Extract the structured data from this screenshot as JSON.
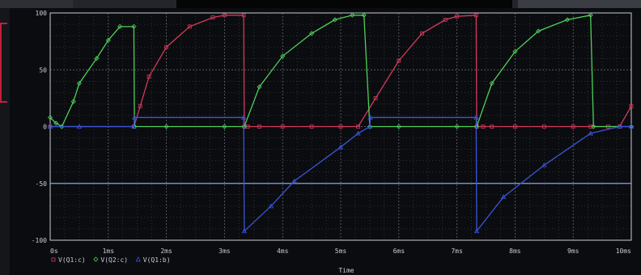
{
  "window": {
    "colors": {
      "background": "#0b0c10",
      "grid": "#8a8f98",
      "axis": "#c8ccd2"
    }
  },
  "chart_data": {
    "type": "line",
    "xlabel": "Time",
    "ylabel": "",
    "xlim": [
      0,
      10
    ],
    "ylim": [
      -100,
      100
    ],
    "x_ticks": [
      "0s",
      "1ms",
      "2ms",
      "3ms",
      "4ms",
      "5ms",
      "6ms",
      "7ms",
      "8ms",
      "9ms",
      "10ms"
    ],
    "y_ticks": [
      "100",
      "50",
      "0",
      "-50",
      "-100"
    ],
    "grid": true,
    "legend_position": "bottom-left",
    "series": [
      {
        "name": "V(Q1:c)",
        "color": "#d23a5a",
        "marker": "square",
        "x": [
          0,
          1.44,
          1.55,
          1.7,
          2.0,
          2.4,
          2.8,
          3.0,
          3.33,
          3.34,
          3.4,
          3.6,
          4.0,
          4.5,
          5.0,
          5.3,
          5.6,
          6.0,
          6.4,
          6.8,
          7.0,
          7.33,
          7.34,
          7.45,
          7.6,
          8.0,
          8.5,
          9.0,
          9.3,
          9.6,
          9.8,
          10.0
        ],
        "y": [
          0,
          0,
          18,
          44,
          70,
          88,
          96,
          98,
          98,
          0,
          0,
          0,
          0,
          0,
          0,
          0,
          25,
          58,
          82,
          94,
          97,
          98,
          0,
          0,
          0,
          0,
          0,
          0,
          0,
          0,
          0,
          18
        ]
      },
      {
        "name": "V(Q2:c)",
        "color": "#4fcf5a",
        "marker": "diamond",
        "x": [
          0,
          0.1,
          0.2,
          0.4,
          0.5,
          0.8,
          1.0,
          1.2,
          1.44,
          1.45,
          2.0,
          3.0,
          3.34,
          3.6,
          4.0,
          4.5,
          4.9,
          5.2,
          5.4,
          5.5,
          6.0,
          7.0,
          7.34,
          7.6,
          8.0,
          8.4,
          8.9,
          9.3,
          9.35,
          10.0
        ],
        "y": [
          8,
          3,
          0,
          22,
          38,
          60,
          76,
          88,
          88,
          0,
          0,
          0,
          0,
          35,
          62,
          82,
          94,
          98,
          98,
          0,
          0,
          0,
          0,
          38,
          66,
          84,
          94,
          98,
          0,
          0
        ]
      },
      {
        "name": "V(Q1:b)",
        "color": "#3a55d8",
        "marker": "triangle",
        "x": [
          0,
          0.5,
          1.44,
          1.45,
          3.33,
          3.34,
          3.8,
          4.2,
          5.0,
          5.3,
          5.5,
          5.51,
          7.33,
          7.34,
          7.8,
          8.5,
          9.3,
          9.8,
          10.0
        ],
        "y": [
          0,
          0,
          0,
          8,
          8,
          -92,
          -70,
          -48,
          -18,
          -6,
          0,
          8,
          8,
          -92,
          -62,
          -34,
          -6,
          0,
          0
        ]
      }
    ],
    "guide_lines": [
      {
        "y": -50,
        "color": "#7fa6e8"
      }
    ]
  }
}
